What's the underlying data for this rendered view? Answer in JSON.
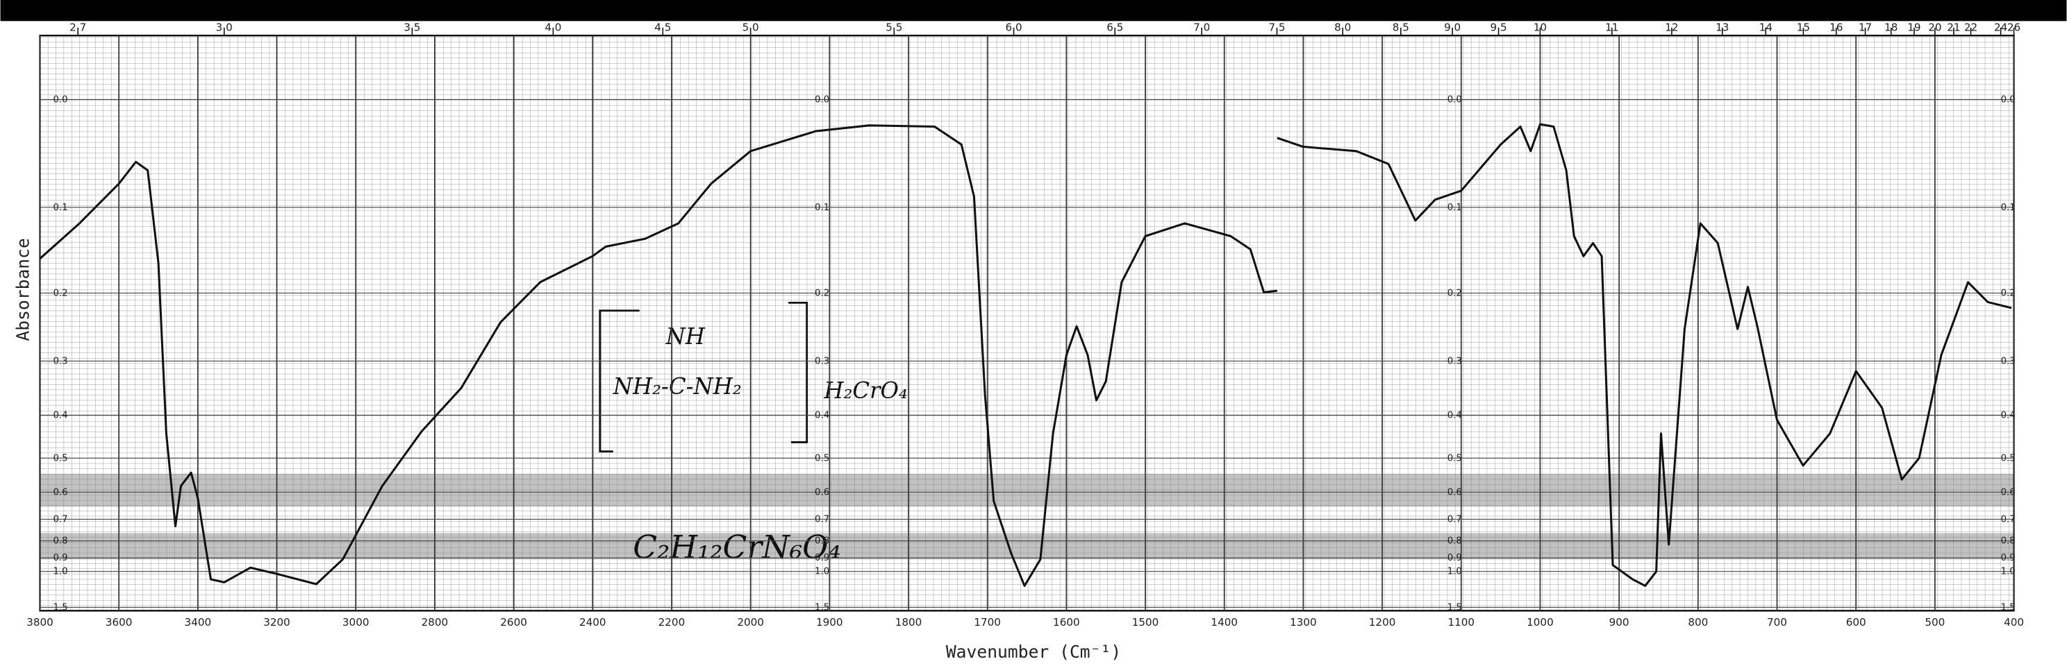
{
  "chart_data": {
    "type": "line",
    "xlabel": "Wavenumber (Cm⁻¹)",
    "ylabel": "Absorbance",
    "yscale": "transmittance",
    "color": "#111111",
    "grid": true,
    "annotations": [
      "NH",
      "NH₂-C-NH₂",
      "H₂CrO₄",
      "C₂H₁₂CrN₆O₄"
    ],
    "xlim": [
      3800,
      400
    ],
    "xticks": [
      3800,
      3600,
      3400,
      3200,
      3000,
      2800,
      2600,
      2400,
      2200,
      2000,
      1900,
      1800,
      1700,
      1600,
      1500,
      1400,
      1300,
      1200,
      1100,
      1000,
      900,
      800,
      700,
      600,
      500,
      400
    ],
    "x2ticks": [
      2.7,
      {
        "value": 3,
        "label": "3.0"
      },
      3.5,
      {
        "value": 4,
        "label": "4.0"
      },
      4.5,
      {
        "value": 5,
        "label": "5.0"
      },
      5.5,
      {
        "value": 6,
        "label": "6.0"
      },
      6.5,
      {
        "value": 7,
        "label": "7.0"
      },
      7.5,
      {
        "value": 8,
        "label": "8.0"
      },
      8.5,
      {
        "value": 9,
        "label": "9.0"
      },
      9.5,
      10,
      11,
      12,
      13,
      14,
      15,
      16,
      17,
      18,
      19,
      20,
      21,
      22,
      24,
      26
    ],
    "ylim": [
      -0.05,
      1.6
    ],
    "yticks": [
      {
        "value": 0,
        "label": "0.0"
      },
      0.1,
      0.2,
      0.3,
      0.4,
      0.5,
      0.6,
      0.7,
      0.8,
      0.9,
      {
        "value": 1,
        "label": "1.0"
      },
      1.5
    ],
    "x": [
      3800,
      3700,
      3600,
      3557,
      3527,
      3500,
      3480,
      3457,
      3443,
      3417,
      3400,
      3367,
      3333,
      3267,
      3200,
      3100,
      3033,
      2933,
      2833,
      2733,
      2633,
      2533,
      2400,
      2367,
      2267,
      2183,
      2100,
      2000,
      1917,
      1850,
      1767,
      1733,
      1717,
      1703,
      1692,
      1670,
      1653,
      1633,
      1617,
      1600,
      1587,
      1573,
      1562,
      1550,
      1530,
      1500,
      1450,
      1392,
      1367,
      1350,
      1333,
      1335,
      1333,
      1300,
      1233,
      1192,
      1158,
      1133,
      1100,
      1050,
      1025,
      1012,
      1000,
      983,
      967,
      957,
      945,
      933,
      922,
      908,
      883,
      867,
      853,
      847,
      837,
      817,
      797,
      775,
      750,
      737,
      725,
      700,
      667,
      633,
      600,
      567,
      542,
      520,
      492,
      458,
      433,
      403
    ],
    "values": [
      0.157,
      0.117,
      0.076,
      0.055,
      0.063,
      0.162,
      0.44,
      0.73,
      0.58,
      0.54,
      0.62,
      1.07,
      1.1,
      0.97,
      1.02,
      1.12,
      0.91,
      0.58,
      0.435,
      0.347,
      0.24,
      0.186,
      0.154,
      0.143,
      0.134,
      0.117,
      0.076,
      0.045,
      0.027,
      0.022,
      0.023,
      0.039,
      0.089,
      0.36,
      0.63,
      0.87,
      1.14,
      0.91,
      0.44,
      0.29,
      0.246,
      0.29,
      0.37,
      0.335,
      0.186,
      0.131,
      0.117,
      0.131,
      0.146,
      0.199,
      0.197,
      null,
      0.033,
      0.041,
      0.045,
      0.057,
      0.114,
      0.092,
      0.083,
      0.039,
      0.023,
      0.045,
      0.021,
      0.023,
      0.063,
      0.131,
      0.154,
      0.139,
      0.154,
      0.95,
      1.07,
      1.14,
      1.0,
      0.44,
      0.82,
      0.25,
      0.117,
      0.139,
      0.25,
      0.192,
      0.246,
      0.41,
      0.52,
      0.44,
      0.317,
      0.385,
      0.56,
      0.5,
      0.29,
      0.186,
      0.212,
      0.22
    ]
  }
}
